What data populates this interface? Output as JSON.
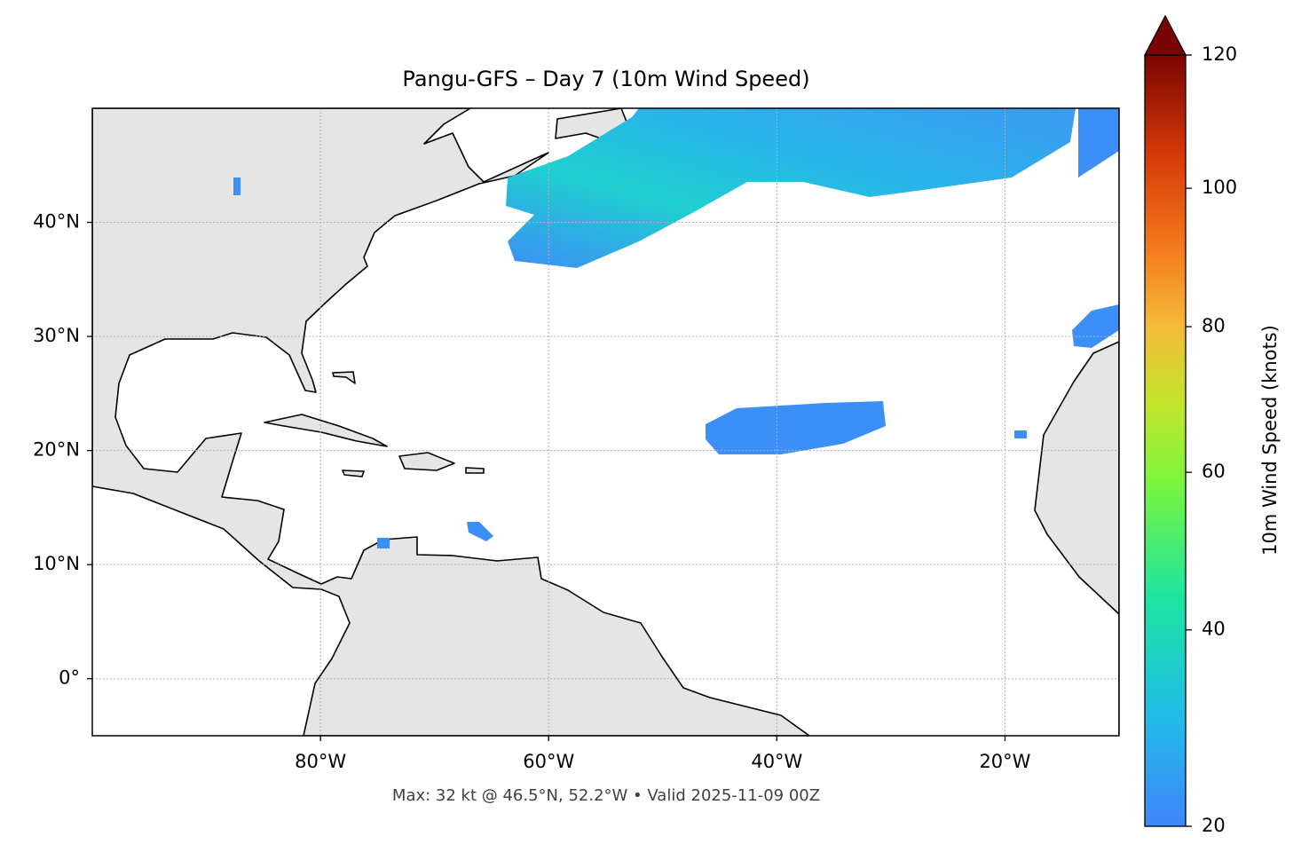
{
  "title": "Pangu-GFS – Day 7 (10m Wind Speed)",
  "map": {
    "xlim": [
      -100,
      -10
    ],
    "ylim": [
      -5,
      50
    ],
    "xticks": [
      {
        "value": -80,
        "label": "80°W"
      },
      {
        "value": -60,
        "label": "60°W"
      },
      {
        "value": -40,
        "label": "40°W"
      },
      {
        "value": -20,
        "label": "20°W"
      }
    ],
    "yticks": [
      {
        "value": 0,
        "label": "0°"
      },
      {
        "value": 10,
        "label": "10°N"
      },
      {
        "value": 20,
        "label": "20°N"
      },
      {
        "value": 30,
        "label": "30°N"
      },
      {
        "value": 40,
        "label": "40°N"
      }
    ],
    "grid": true
  },
  "colorbar": {
    "label": "10m Wind Speed (knots)",
    "lim": [
      20,
      120
    ],
    "ticks": [
      20,
      40,
      60,
      80,
      100,
      120
    ],
    "gamma": 0.85
  },
  "footer": "Max: 32 kt @ 46.5°N, 52.2°W • Valid 2025-11-09 00Z"
}
